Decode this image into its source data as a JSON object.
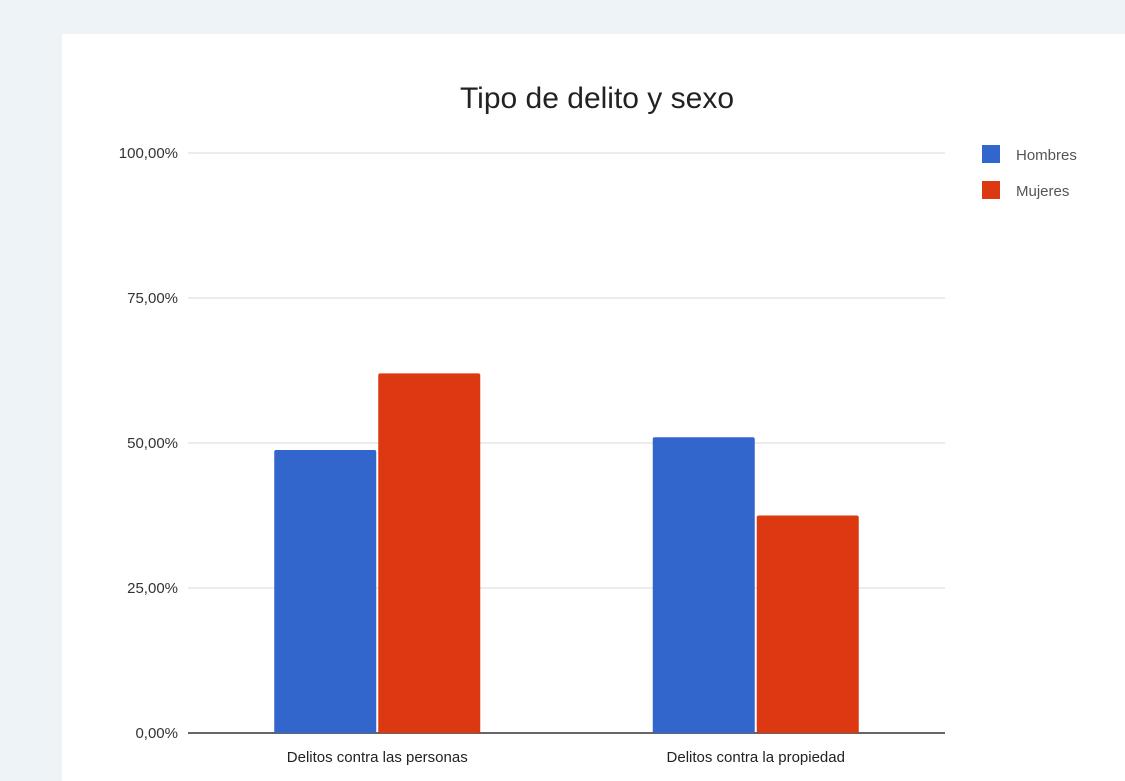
{
  "chart_data": {
    "type": "bar",
    "title": "Tipo de delito y sexo",
    "xlabel": "",
    "ylabel": "",
    "categories": [
      "Delitos contra las personas",
      "Delitos contra la propiedad"
    ],
    "series": [
      {
        "name": "Hombres",
        "color": "#3366cc",
        "values": [
          48.8,
          51.0
        ]
      },
      {
        "name": "Mujeres",
        "color": "#dc3912",
        "values": [
          62.0,
          37.5
        ]
      }
    ],
    "ylim": [
      0,
      100
    ],
    "yticks": [
      0,
      25,
      50,
      75,
      100
    ],
    "ytick_labels": [
      "0,00%",
      "25,00%",
      "50,00%",
      "75,00%",
      "100,00%"
    ],
    "grid": true,
    "legend_position": "top-right"
  }
}
